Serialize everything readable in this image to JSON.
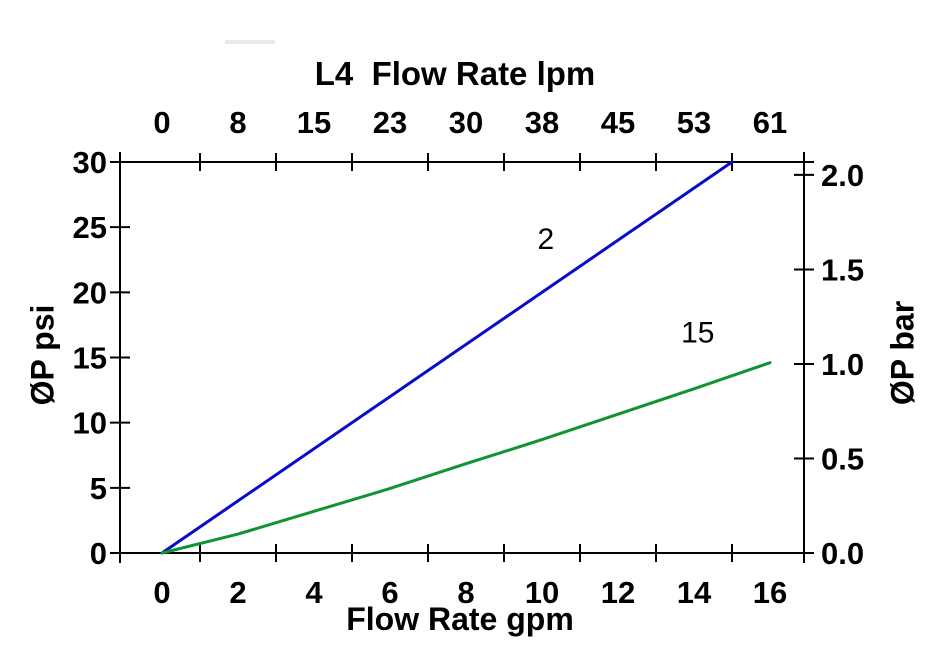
{
  "chart_data": {
    "type": "line",
    "title": "L4  Flow Rate lpm",
    "grid": false,
    "plot_bg": "#ffffff",
    "top_axis": {
      "label": "L4  Flow Rate lpm",
      "unit": "lpm",
      "tick_labels": [
        "0",
        "8",
        "15",
        "23",
        "30",
        "38",
        "45",
        "53",
        "61"
      ],
      "tick_positions_gpm": [
        0,
        2,
        4,
        6,
        8,
        10,
        12,
        14,
        16
      ],
      "crossing_tick_positions_gpm": [
        1,
        3,
        5,
        7,
        9,
        11,
        13,
        15
      ]
    },
    "bottom_axis": {
      "label": "Flow Rate gpm",
      "unit": "gpm",
      "range": [
        0,
        16
      ],
      "tick_labels": [
        "0",
        "2",
        "4",
        "6",
        "8",
        "10",
        "12",
        "14",
        "16"
      ],
      "tick_positions_gpm": [
        0,
        2,
        4,
        6,
        8,
        10,
        12,
        14,
        16
      ],
      "crossing_tick_positions_gpm": [
        1,
        3,
        5,
        7,
        9,
        11,
        13,
        15
      ]
    },
    "left_axis": {
      "label": "ØP psi",
      "unit": "psi",
      "range": [
        0,
        30
      ],
      "tick_labels": [
        "0",
        "5",
        "10",
        "15",
        "20",
        "25",
        "30"
      ],
      "tick_values_psi": [
        0,
        5,
        10,
        15,
        20,
        25,
        30
      ]
    },
    "right_axis": {
      "label": "ØP bar",
      "unit": "bar",
      "range": [
        0.0,
        2.0
      ],
      "tick_labels": [
        "0.0",
        "0.5",
        "1.0",
        "1.5",
        "2.0"
      ],
      "tick_values_bar": [
        0,
        0.5,
        1,
        1.5,
        2
      ],
      "psi_per_bar": 14.5038
    },
    "series": [
      {
        "label": "2",
        "color": "#0a0acd",
        "label_pos_gpm_psi": [
          10.1,
          24.1
        ],
        "points_gpm_psi": [
          [
            0,
            0
          ],
          [
            15,
            30
          ]
        ]
      },
      {
        "label": "15",
        "color": "#0e9430",
        "label_pos_gpm_psi": [
          14.1,
          16.9
        ],
        "points_gpm_psi": [
          [
            0,
            0
          ],
          [
            2,
            1.45
          ],
          [
            4,
            3.2
          ],
          [
            6,
            4.95
          ],
          [
            8,
            6.85
          ],
          [
            10,
            8.7
          ],
          [
            12,
            10.65
          ],
          [
            14,
            12.6
          ],
          [
            16,
            14.6
          ]
        ]
      }
    ]
  }
}
